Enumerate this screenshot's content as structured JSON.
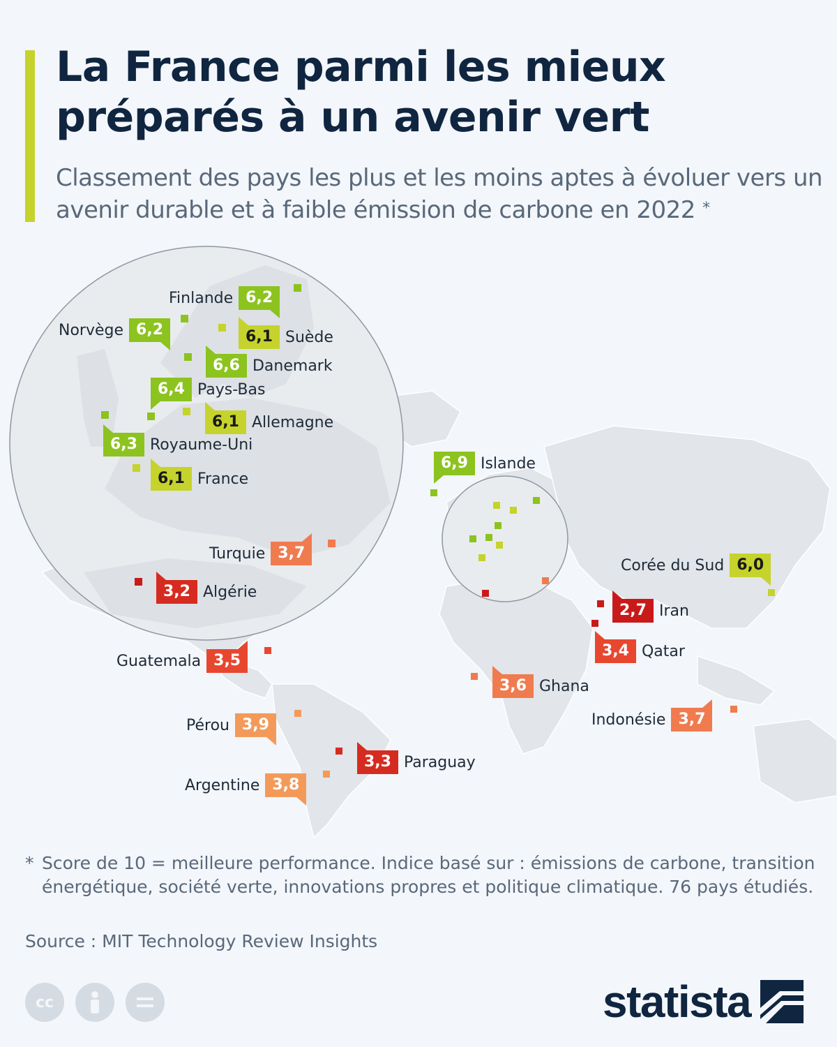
{
  "title": "La France parmi les mieux préparés à un avenir vert",
  "subtitle": "Classement des pays les plus et les moins aptes à évoluer vers un avenir durable et à faible émission de carbone en 2022",
  "subtitle_mark": "*",
  "footnote_mark": "*",
  "footnote": "Score de 10 = meilleure performance. Indice basé sur : émissions de carbone, transition énergétique, société verte, innovations propres et politique climatique. 76 pays étudiés.",
  "source": "Source : MIT Technology Review Insights",
  "brand": "statista",
  "license_icons": [
    "cc-icon",
    "person-icon",
    "equals-icon"
  ],
  "colors": {
    "accent": "#c5d32c",
    "high": "#8cc31f",
    "upper": "#c5d32c",
    "low": "#f07b4f",
    "lower": "#e8472f",
    "lowest": "#c91a1a"
  },
  "countries": [
    {
      "name": "Islande",
      "score": "6,9",
      "color": "#8cc31f"
    },
    {
      "name": "Danemark",
      "score": "6,6",
      "color": "#8cc31f"
    },
    {
      "name": "Pays-Bas",
      "score": "6,4",
      "color": "#8cc31f"
    },
    {
      "name": "Royaume-Uni",
      "score": "6,3",
      "color": "#8cc31f"
    },
    {
      "name": "Finlande",
      "score": "6,2",
      "color": "#8cc31f"
    },
    {
      "name": "Norvège",
      "score": "6,2",
      "color": "#8cc31f"
    },
    {
      "name": "Suède",
      "score": "6,1",
      "color": "#c5d32c"
    },
    {
      "name": "Allemagne",
      "score": "6,1",
      "color": "#c5d32c"
    },
    {
      "name": "France",
      "score": "6,1",
      "color": "#c5d32c"
    },
    {
      "name": "Corée du Sud",
      "score": "6,0",
      "color": "#c5d32c"
    },
    {
      "name": "Pérou",
      "score": "3,9",
      "color": "#f39a5a"
    },
    {
      "name": "Argentine",
      "score": "3,8",
      "color": "#f39a5a"
    },
    {
      "name": "Turquie",
      "score": "3,7",
      "color": "#f07b4f"
    },
    {
      "name": "Indonésie",
      "score": "3,7",
      "color": "#f07b4f"
    },
    {
      "name": "Ghana",
      "score": "3,6",
      "color": "#f07b4f"
    },
    {
      "name": "Guatemala",
      "score": "3,5",
      "color": "#e8472f"
    },
    {
      "name": "Qatar",
      "score": "3,4",
      "color": "#e8472f"
    },
    {
      "name": "Paraguay",
      "score": "3,3",
      "color": "#d62b20"
    },
    {
      "name": "Algérie",
      "score": "3,2",
      "color": "#d62b20"
    },
    {
      "name": "Iran",
      "score": "2,7",
      "color": "#c91a1a"
    }
  ]
}
